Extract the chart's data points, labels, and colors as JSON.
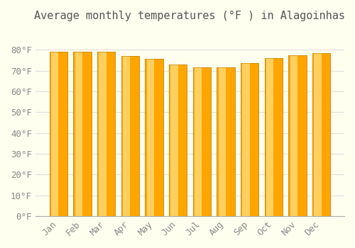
{
  "title": "Average monthly temperatures (°F ) in Alagoinhas",
  "months": [
    "Jan",
    "Feb",
    "Mar",
    "Apr",
    "May",
    "Jun",
    "Jul",
    "Aug",
    "Sep",
    "Oct",
    "Nov",
    "Dec"
  ],
  "values": [
    79,
    79,
    79,
    77,
    75.5,
    73,
    71.5,
    71.5,
    73.5,
    76,
    77.5,
    78.5
  ],
  "ylim": [
    0,
    90
  ],
  "yticks": [
    0,
    10,
    20,
    30,
    40,
    50,
    60,
    70,
    80
  ],
  "ytick_labels": [
    "0°F",
    "10°F",
    "20°F",
    "30°F",
    "40°F",
    "50°F",
    "60°F",
    "70°F",
    "80°F"
  ],
  "bar_color": "#FFA500",
  "bar_edge_color": "#CC8800",
  "background_color": "#FFFFF0",
  "grid_color": "#DDDDDD",
  "title_fontsize": 11,
  "tick_fontsize": 9,
  "font_family": "monospace"
}
